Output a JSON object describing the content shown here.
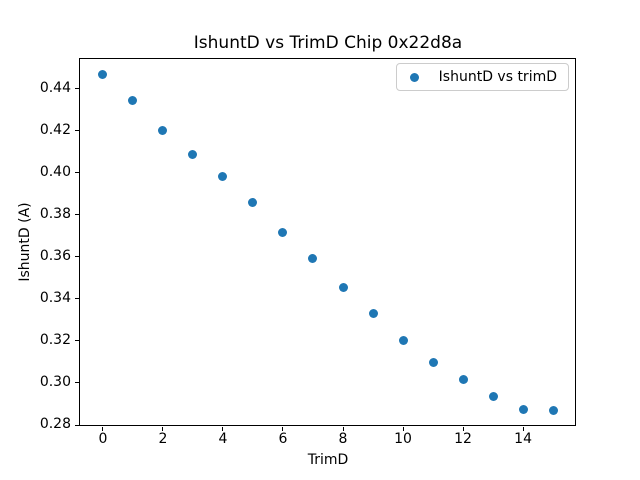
{
  "chart_data": {
    "type": "scatter",
    "title": "IshuntD vs TrimD Chip 0x22d8a",
    "xlabel": "TrimD",
    "ylabel": "IshuntD (A)",
    "legend": [
      "IshuntD vs trimD"
    ],
    "legend_position": "upper right",
    "x": [
      0,
      1,
      2,
      3,
      4,
      5,
      6,
      7,
      8,
      9,
      10,
      11,
      12,
      13,
      14,
      15
    ],
    "y": [
      0.4465,
      0.4345,
      0.42,
      0.4085,
      0.398,
      0.386,
      0.3715,
      0.359,
      0.3455,
      0.333,
      0.32,
      0.3095,
      0.3015,
      0.2935,
      0.2875,
      0.287
    ],
    "xlim": [
      -0.78,
      15.78
    ],
    "ylim": [
      0.2793,
      0.4543
    ],
    "x_ticks": [
      0,
      2,
      4,
      6,
      8,
      10,
      12,
      14
    ],
    "y_ticks": [
      0.28,
      0.3,
      0.32,
      0.34,
      0.36,
      0.38,
      0.4,
      0.42,
      0.44
    ],
    "grid": false,
    "marker_color": "#1f77b4",
    "spine_color": "#000000"
  }
}
